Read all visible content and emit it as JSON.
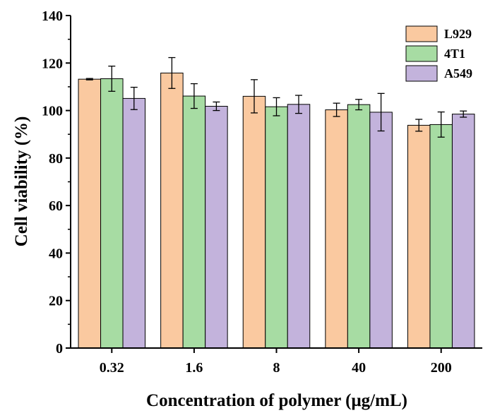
{
  "chart_data": {
    "type": "bar",
    "title": "",
    "xlabel": "Concentration of polymer (μg/mL)",
    "ylabel": "Cell viability (%)",
    "ylim": [
      0,
      140
    ],
    "yticks": [
      0,
      20,
      40,
      60,
      80,
      100,
      120,
      140
    ],
    "categories": [
      "0.32",
      "1.6",
      "8",
      "40",
      "200"
    ],
    "error_bars": true,
    "legend_position": "top-right",
    "series": [
      {
        "name": "L929",
        "color": "#FAC9A0",
        "values": [
          113.2,
          115.8,
          106.0,
          100.3,
          93.8
        ],
        "errors": [
          0.3,
          6.5,
          7.0,
          2.8,
          2.5
        ]
      },
      {
        "name": "4T1",
        "color": "#A7DCA3",
        "values": [
          113.4,
          106.1,
          101.6,
          102.5,
          94.1
        ],
        "errors": [
          5.3,
          5.2,
          3.8,
          2.2,
          5.3
        ]
      },
      {
        "name": "A549",
        "color": "#C3B3DC",
        "values": [
          105.1,
          101.8,
          102.6,
          99.3,
          98.5
        ],
        "errors": [
          4.7,
          1.8,
          3.8,
          7.9,
          1.3
        ]
      }
    ]
  }
}
